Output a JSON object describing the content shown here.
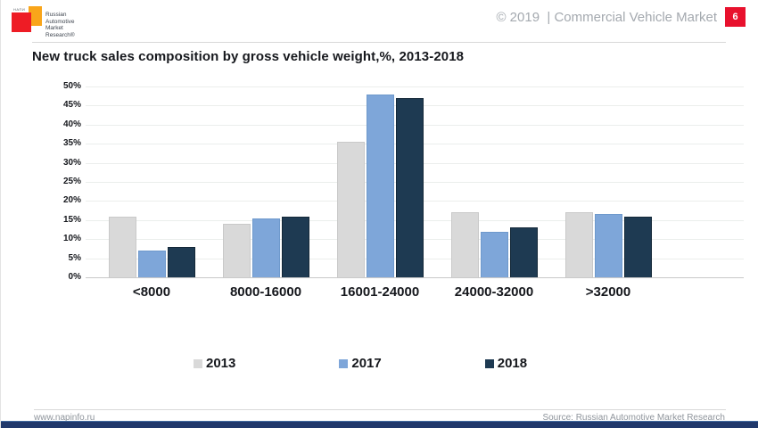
{
  "header": {
    "logo": {
      "napi_text": "НАПИ",
      "lines": [
        "Russian",
        "Automotive",
        "Market",
        "Research®"
      ]
    },
    "copyright": "© 2019  | Commercial Vehicle Market",
    "page_number": "6"
  },
  "title": "New truck sales composition by gross vehicle weight,%, 2013-2018",
  "chart_data": {
    "type": "bar",
    "title": "New truck sales composition by gross vehicle weight,%, 2013-2018",
    "categories": [
      "<8000",
      "8000-16000",
      "16001-24000",
      "24000-32000",
      ">32000"
    ],
    "series": [
      {
        "name": "2013",
        "color": "#d9d9d9",
        "border": "#c9c9c9",
        "values": [
          16,
          14,
          35.5,
          17,
          17
        ]
      },
      {
        "name": "2017",
        "color": "#7ea6d9",
        "border": "#6e99cc",
        "values": [
          7,
          15.5,
          48,
          12,
          16.5
        ]
      },
      {
        "name": "2018",
        "color": "#1e3a52",
        "border": "#142838",
        "values": [
          8,
          16,
          47,
          13,
          16
        ]
      }
    ],
    "xlabel": "",
    "ylabel": "",
    "ylim": [
      0,
      50
    ],
    "ytick_step": 5,
    "ytick_labels": [
      "0%",
      "5%",
      "10%",
      "15%",
      "20%",
      "25%",
      "30%",
      "35%",
      "40%",
      "45%",
      "50%"
    ],
    "grid": true,
    "legend_position": "bottom"
  },
  "footer": {
    "website": "www.napinfo.ru",
    "source": "Source: Russian Automotive Market Research"
  },
  "colors": {
    "accent_red": "#e8112d",
    "logo_red": "#ee1c25",
    "logo_orange": "#f9a51a",
    "bottom_bar": "#20386b",
    "muted_text": "#a4a9af",
    "gridline": "#ebeeec"
  }
}
